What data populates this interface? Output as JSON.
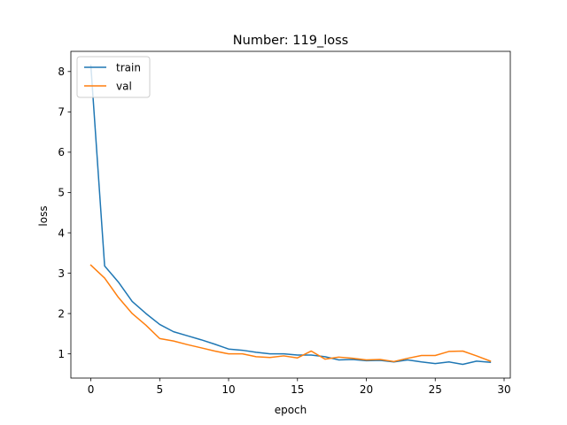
{
  "chart_data": {
    "type": "line",
    "title": "Number: 119_loss",
    "xlabel": "epoch",
    "ylabel": "loss",
    "xlim": [
      -1.45,
      30.45
    ],
    "ylim": [
      0.4,
      8.5
    ],
    "xticks": [
      0,
      5,
      10,
      15,
      20,
      25,
      30
    ],
    "yticks": [
      1,
      2,
      3,
      4,
      5,
      6,
      7,
      8
    ],
    "legend_position": "upper-left",
    "grid": false,
    "x": [
      0,
      1,
      2,
      3,
      4,
      5,
      6,
      7,
      8,
      9,
      10,
      11,
      12,
      13,
      14,
      15,
      16,
      17,
      18,
      19,
      20,
      21,
      22,
      23,
      24,
      25,
      26,
      27,
      28,
      29
    ],
    "series": [
      {
        "name": "train",
        "color": "#1f77b4",
        "values": [
          8.15,
          3.18,
          2.78,
          2.3,
          2.0,
          1.73,
          1.55,
          1.45,
          1.35,
          1.24,
          1.12,
          1.09,
          1.04,
          1.0,
          1.0,
          0.97,
          0.97,
          0.93,
          0.85,
          0.86,
          0.83,
          0.84,
          0.8,
          0.85,
          0.8,
          0.76,
          0.8,
          0.74,
          0.82,
          0.79
        ]
      },
      {
        "name": "val",
        "color": "#ff7f0e",
        "values": [
          3.2,
          2.88,
          2.4,
          2.0,
          1.71,
          1.38,
          1.32,
          1.23,
          1.15,
          1.07,
          1.0,
          1.0,
          0.93,
          0.91,
          0.95,
          0.9,
          1.07,
          0.87,
          0.92,
          0.89,
          0.85,
          0.86,
          0.81,
          0.89,
          0.96,
          0.96,
          1.06,
          1.07,
          0.95,
          0.82
        ]
      }
    ]
  }
}
